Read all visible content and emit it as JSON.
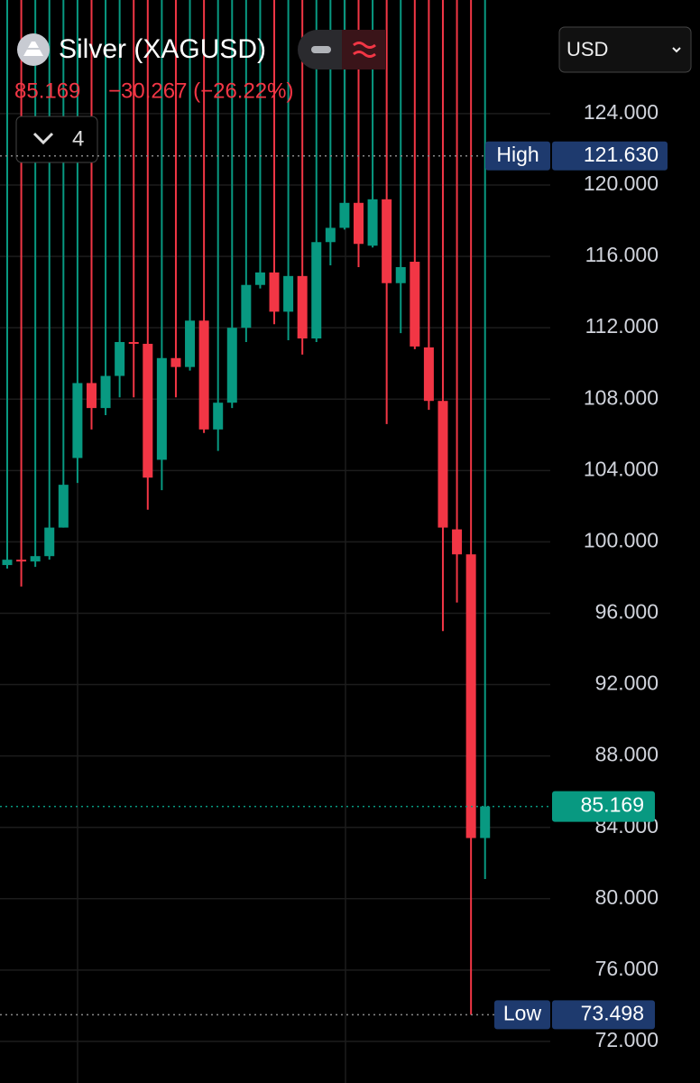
{
  "header": {
    "title": "Silver (XAGUSD)",
    "price": "85.169",
    "change": "−30.267 (−26.22%)",
    "indicator_count": "4",
    "currency": "USD"
  },
  "chart_data": {
    "type": "candlestick",
    "up_color": "#089981",
    "down_color": "#f23645",
    "open": [
      98.7,
      99.0,
      98.9,
      99.2,
      100.8,
      104.7,
      108.9,
      107.5,
      109.3,
      111.2,
      111.1,
      104.6,
      110.3,
      109.8,
      112.4,
      106.3,
      107.8,
      112.0,
      114.4,
      115.1,
      112.9,
      114.9,
      111.4,
      116.8,
      117.6,
      119.0,
      116.6,
      119.2,
      114.5,
      115.7,
      110.9,
      107.9,
      100.7,
      99.3,
      83.4
    ],
    "high": {
      "value": 121.63,
      "label": "121.630"
    },
    "low": [
      98.5,
      97.5,
      98.6,
      99.0,
      100.8,
      103.3,
      106.3,
      107.1,
      108.1,
      108.1,
      101.8,
      102.9,
      108.1,
      109.6,
      106.1,
      105.1,
      107.5,
      111.2,
      114.2,
      112.2,
      111.3,
      110.5,
      111.2,
      115.5,
      117.5,
      115.4,
      116.5,
      106.6,
      111.7,
      110.8,
      107.4,
      95.0,
      96.6,
      73.498,
      81.1
    ],
    "close": [
      99.0,
      98.9,
      99.2,
      100.8,
      103.2,
      108.9,
      107.5,
      109.3,
      111.2,
      111.1,
      103.6,
      110.3,
      109.8,
      112.4,
      106.3,
      107.8,
      112.0,
      114.4,
      115.1,
      112.9,
      114.9,
      111.4,
      116.8,
      117.6,
      119.0,
      116.7,
      119.2,
      114.5,
      115.4,
      110.95,
      107.9,
      100.8,
      99.3,
      83.4,
      85.169
    ],
    "ylim": [
      69.67,
      130.37
    ],
    "yticks": [
      {
        "value": 72,
        "label": "72.000"
      },
      {
        "value": 76,
        "label": "76.000"
      },
      {
        "value": 80,
        "label": "80.000"
      },
      {
        "value": 84,
        "label": "84.000"
      },
      {
        "value": 88,
        "label": "88.000"
      },
      {
        "value": 92,
        "label": "92.000"
      },
      {
        "value": 96,
        "label": "96.000"
      },
      {
        "value": 100,
        "label": "100.000"
      },
      {
        "value": 104,
        "label": "104.000"
      },
      {
        "value": 108,
        "label": "108.000"
      },
      {
        "value": 112,
        "label": "112.000"
      },
      {
        "value": 116,
        "label": "116.000"
      },
      {
        "value": 120,
        "label": "120.000"
      },
      {
        "value": 124,
        "label": "124.000"
      }
    ],
    "grid": true,
    "high_text": "High",
    "low_text": "Low",
    "low_mark": {
      "value": 73.498,
      "label": "73.498"
    },
    "last": {
      "value": 85.169,
      "label": "85.169"
    }
  }
}
